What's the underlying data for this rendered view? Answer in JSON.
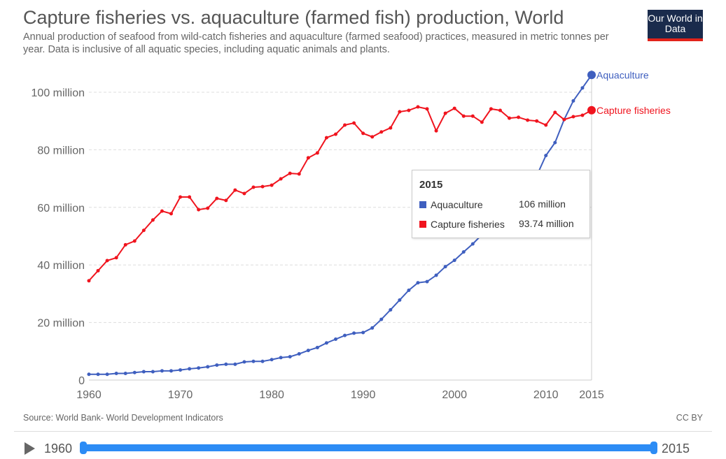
{
  "header": {
    "title": "Capture fisheries vs. aquaculture (farmed fish) production, World",
    "subtitle": "Annual production of seafood from wild-catch fisheries and aquaculture (farmed seafood) practices, measured in metric tonnes per year. Data is inclusive of all aquatic species, including aquatic animals and plants.",
    "logo": "Our World in Data"
  },
  "footer": {
    "source": "Source: World Bank- World Development Indicators",
    "license": "CC BY"
  },
  "timeline": {
    "start": "1960",
    "end": "2015",
    "play_icon": "play-icon"
  },
  "tooltip": {
    "year": "2015",
    "rows": [
      {
        "label": "Aquaculture",
        "value": "106 million"
      },
      {
        "label": "Capture fisheries",
        "value": "93.74 million"
      }
    ]
  },
  "chart_data": {
    "type": "line",
    "title": "Capture fisheries vs. aquaculture (farmed fish) production, World",
    "ylim": [
      0,
      106
    ],
    "xlim": [
      1960,
      2015
    ],
    "grid": "horizontal dashed",
    "unit": "million tonnes",
    "y_ticks": [
      {
        "v": 0,
        "label": "0"
      },
      {
        "v": 20,
        "label": "20 million"
      },
      {
        "v": 40,
        "label": "40 million"
      },
      {
        "v": 60,
        "label": "60 million"
      },
      {
        "v": 80,
        "label": "80 million"
      },
      {
        "v": 100,
        "label": "100 million"
      }
    ],
    "x_ticks": [
      1960,
      1970,
      1980,
      1990,
      2000,
      2010,
      2015
    ],
    "x": [
      1960,
      1961,
      1962,
      1963,
      1964,
      1965,
      1966,
      1967,
      1968,
      1969,
      1970,
      1971,
      1972,
      1973,
      1974,
      1975,
      1976,
      1977,
      1978,
      1979,
      1980,
      1981,
      1982,
      1983,
      1984,
      1985,
      1986,
      1987,
      1988,
      1989,
      1990,
      1991,
      1992,
      1993,
      1994,
      1995,
      1996,
      1997,
      1998,
      1999,
      2000,
      2001,
      2002,
      2003,
      2004,
      2005,
      2006,
      2007,
      2008,
      2009,
      2010,
      2011,
      2012,
      2013,
      2014,
      2015
    ],
    "series": [
      {
        "name": "Aquaculture",
        "color": "#3f5fbf",
        "values": [
          2,
          2,
          2,
          2.3,
          2.3,
          2.6,
          2.9,
          2.9,
          3.2,
          3.2,
          3.5,
          3.9,
          4.2,
          4.6,
          5.2,
          5.5,
          5.5,
          6.3,
          6.5,
          6.5,
          7.1,
          7.8,
          8.1,
          9.1,
          10.3,
          11.3,
          12.9,
          14.2,
          15.5,
          16.3,
          16.5,
          18.1,
          21.1,
          24.4,
          27.8,
          31.2,
          33.8,
          34.2,
          36.4,
          39.4,
          41.6,
          44.5,
          47.3,
          50.5,
          54,
          57.3,
          60.5,
          64,
          67.5,
          71,
          78,
          82.5,
          90.5,
          97,
          101.5,
          106
        ]
      },
      {
        "name": "Capture fisheries",
        "color": "#f0141e",
        "values": [
          34.5,
          38,
          41.5,
          42.5,
          47,
          48.3,
          52,
          55.6,
          58.7,
          57.8,
          63.6,
          63.6,
          59.2,
          59.7,
          63.1,
          62.4,
          66,
          64.8,
          67,
          67.2,
          67.7,
          69.9,
          71.8,
          71.6,
          77.2,
          78.9,
          84.2,
          85.4,
          88.6,
          89.3,
          85.7,
          84.5,
          86.2,
          87.6,
          93.2,
          93.7,
          94.9,
          94.2,
          86.6,
          92.7,
          94.4,
          91.7,
          91.7,
          89.6,
          94.2,
          93.7,
          91,
          91.3,
          90.3,
          90,
          88.6,
          93,
          90.5,
          91.5,
          92,
          93.74
        ]
      }
    ]
  }
}
